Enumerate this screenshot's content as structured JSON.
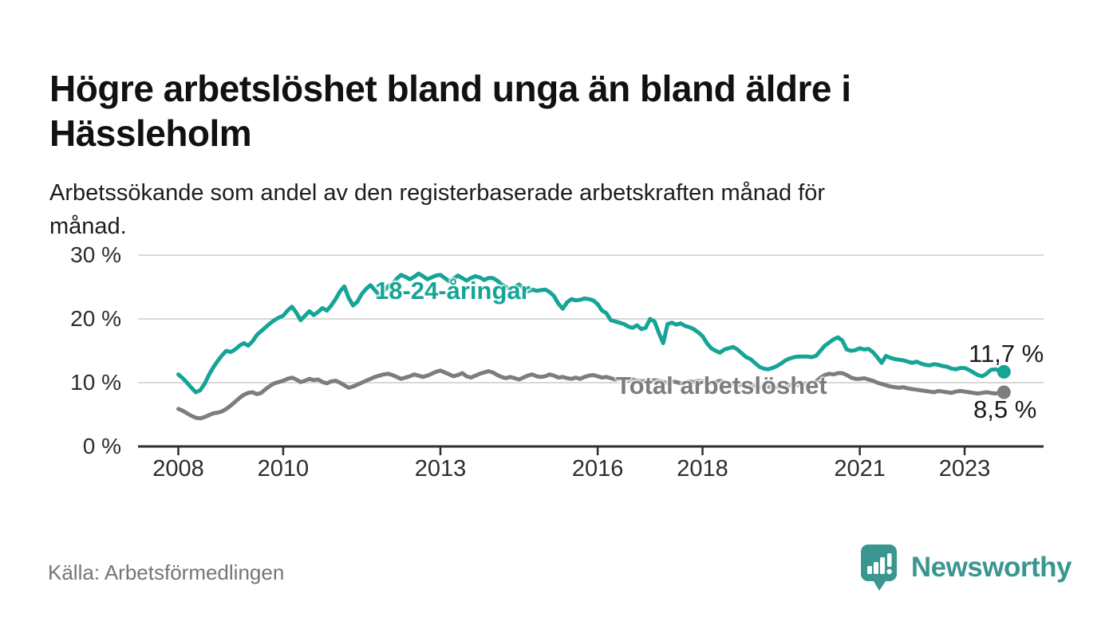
{
  "page": {
    "title_lines": [
      "Högre arbetslöshet bland unga än bland äldre i",
      "Hässleholm"
    ],
    "subtitle_lines": [
      "Arbetssökande som andel av den registerbaserade arbetskraften månad för",
      "månad."
    ],
    "source": "Källa: Arbetsförmedlingen",
    "brand": "Newsworthy"
  },
  "colors": {
    "accent_teal": "#16a496",
    "series_gray": "#7d7d7d",
    "gridline": "#d8d8d8",
    "axis": "#2e2e2e",
    "value_label": "#1a1a1a",
    "source_text": "#74747c",
    "brand_teal": "#3a968f",
    "background": "#ffffff"
  },
  "chart_data": {
    "type": "line",
    "title": "Högre arbetslöshet bland unga än bland äldre i Hässleholm",
    "subtitle": "Arbetssökande som andel av den registerbaserade arbetskraften månad för månad.",
    "xlabel": "",
    "ylabel": "",
    "unit": "%",
    "frequency": "monthly",
    "x_start": "2008-01",
    "x_end": "2023-10",
    "ylim": [
      0,
      31
    ],
    "grid": "horizontal",
    "legend_position": "inline-labels",
    "yticks": [
      {
        "value": 0,
        "label": "0 %"
      },
      {
        "value": 10,
        "label": "10 %"
      },
      {
        "value": 20,
        "label": "20 %"
      },
      {
        "value": 30,
        "label": "30 %"
      }
    ],
    "xticks": [
      {
        "year": 2008,
        "label": "2008"
      },
      {
        "year": 2010,
        "label": "2010"
      },
      {
        "year": 2013,
        "label": "2013"
      },
      {
        "year": 2016,
        "label": "2016"
      },
      {
        "year": 2018,
        "label": "2018"
      },
      {
        "year": 2021,
        "label": "2021"
      },
      {
        "year": 2023,
        "label": "2023"
      }
    ],
    "series": [
      {
        "name": "18-24-åringar",
        "color": "#16a496",
        "end_label": "11,7 %",
        "end_value": 11.7,
        "values": [
          11.3,
          10.7,
          10.0,
          9.2,
          8.5,
          8.8,
          9.8,
          11.2,
          12.4,
          13.4,
          14.3,
          15.0,
          14.8,
          15.2,
          15.8,
          16.2,
          15.8,
          16.5,
          17.5,
          18.1,
          18.7,
          19.3,
          19.8,
          20.2,
          20.5,
          21.3,
          21.9,
          21.0,
          19.8,
          20.5,
          21.2,
          20.6,
          21.1,
          21.7,
          21.3,
          22.1,
          23.1,
          24.3,
          25.1,
          23.3,
          22.1,
          22.7,
          23.9,
          24.7,
          25.3,
          24.5,
          23.7,
          24.3,
          25.1,
          25.5,
          26.3,
          26.9,
          26.6,
          26.2,
          26.6,
          27.1,
          26.7,
          26.2,
          26.5,
          26.8,
          26.9,
          26.4,
          25.9,
          26.3,
          26.8,
          26.4,
          26.0,
          26.4,
          26.7,
          26.5,
          26.1,
          26.4,
          26.4,
          26.0,
          25.4,
          25.0,
          24.6,
          25.0,
          25.4,
          24.8,
          24.3,
          24.6,
          24.4,
          24.5,
          24.6,
          24.2,
          23.6,
          22.4,
          21.6,
          22.6,
          23.1,
          22.9,
          23.0,
          23.2,
          23.1,
          22.9,
          22.3,
          21.3,
          20.9,
          19.8,
          19.6,
          19.4,
          19.2,
          18.8,
          18.6,
          19.0,
          18.4,
          18.6,
          20.0,
          19.6,
          17.8,
          16.2,
          19.2,
          19.4,
          19.1,
          19.3,
          18.9,
          18.7,
          18.4,
          17.9,
          17.3,
          16.2,
          15.4,
          15.0,
          14.7,
          15.2,
          15.4,
          15.6,
          15.2,
          14.6,
          14.0,
          13.7,
          13.1,
          12.5,
          12.2,
          12.1,
          12.3,
          12.6,
          13.0,
          13.5,
          13.8,
          14.0,
          14.1,
          14.1,
          14.1,
          14.0,
          14.2,
          15.0,
          15.8,
          16.3,
          16.8,
          17.1,
          16.6,
          15.2,
          15.0,
          15.1,
          15.4,
          15.2,
          15.3,
          14.8,
          14.0,
          13.1,
          14.2,
          13.9,
          13.7,
          13.6,
          13.5,
          13.3,
          13.1,
          13.3,
          13.0,
          12.8,
          12.7,
          12.9,
          12.8,
          12.6,
          12.5,
          12.2,
          12.1,
          12.3,
          12.3,
          12.0,
          11.6,
          11.2,
          11.0,
          11.4,
          12.0,
          12.1,
          11.9,
          11.7
        ]
      },
      {
        "name": "Total arbetslöshet",
        "color": "#7d7d7d",
        "end_label": "8,5 %",
        "end_value": 8.5,
        "values": [
          5.9,
          5.6,
          5.2,
          4.8,
          4.5,
          4.4,
          4.6,
          4.9,
          5.2,
          5.3,
          5.5,
          5.9,
          6.4,
          7.0,
          7.6,
          8.1,
          8.4,
          8.5,
          8.2,
          8.4,
          9.0,
          9.5,
          9.9,
          10.1,
          10.3,
          10.6,
          10.8,
          10.5,
          10.1,
          10.3,
          10.6,
          10.4,
          10.5,
          10.1,
          9.9,
          10.2,
          10.3,
          10.0,
          9.6,
          9.2,
          9.4,
          9.7,
          10.0,
          10.3,
          10.6,
          10.9,
          11.1,
          11.3,
          11.4,
          11.2,
          10.9,
          10.6,
          10.8,
          11.0,
          11.3,
          11.1,
          10.9,
          11.1,
          11.4,
          11.7,
          11.9,
          11.6,
          11.3,
          11.0,
          11.2,
          11.5,
          11.0,
          10.8,
          11.1,
          11.4,
          11.6,
          11.8,
          11.6,
          11.2,
          10.9,
          10.7,
          10.9,
          10.7,
          10.5,
          10.8,
          11.1,
          11.3,
          11.0,
          10.9,
          11.0,
          11.3,
          11.1,
          10.8,
          10.9,
          10.7,
          10.6,
          10.8,
          10.6,
          10.9,
          11.1,
          11.2,
          11.0,
          10.8,
          10.9,
          10.7,
          10.5,
          10.6,
          10.4,
          10.3,
          10.5,
          10.3,
          10.2,
          10.3,
          10.2,
          10.4,
          10.3,
          10.1,
          10.0,
          10.2,
          10.1,
          9.9,
          10.0,
          10.2,
          10.1,
          10.3,
          10.2,
          10.0,
          9.9,
          10.1,
          10.3,
          10.1,
          9.9,
          9.8,
          9.6,
          9.7,
          9.5,
          9.6,
          9.5,
          9.4,
          9.3,
          9.4,
          9.2,
          9.3,
          9.5,
          9.4,
          9.6,
          9.7,
          9.6,
          9.8,
          9.9,
          9.8,
          10.2,
          10.8,
          11.2,
          11.4,
          11.3,
          11.5,
          11.5,
          11.2,
          10.8,
          10.6,
          10.6,
          10.7,
          10.5,
          10.3,
          10.0,
          9.8,
          9.6,
          9.4,
          9.3,
          9.2,
          9.3,
          9.1,
          9.0,
          8.9,
          8.8,
          8.7,
          8.6,
          8.5,
          8.7,
          8.6,
          8.5,
          8.4,
          8.6,
          8.7,
          8.6,
          8.5,
          8.4,
          8.3,
          8.4,
          8.5,
          8.4,
          8.3,
          8.4,
          8.5
        ]
      }
    ]
  }
}
